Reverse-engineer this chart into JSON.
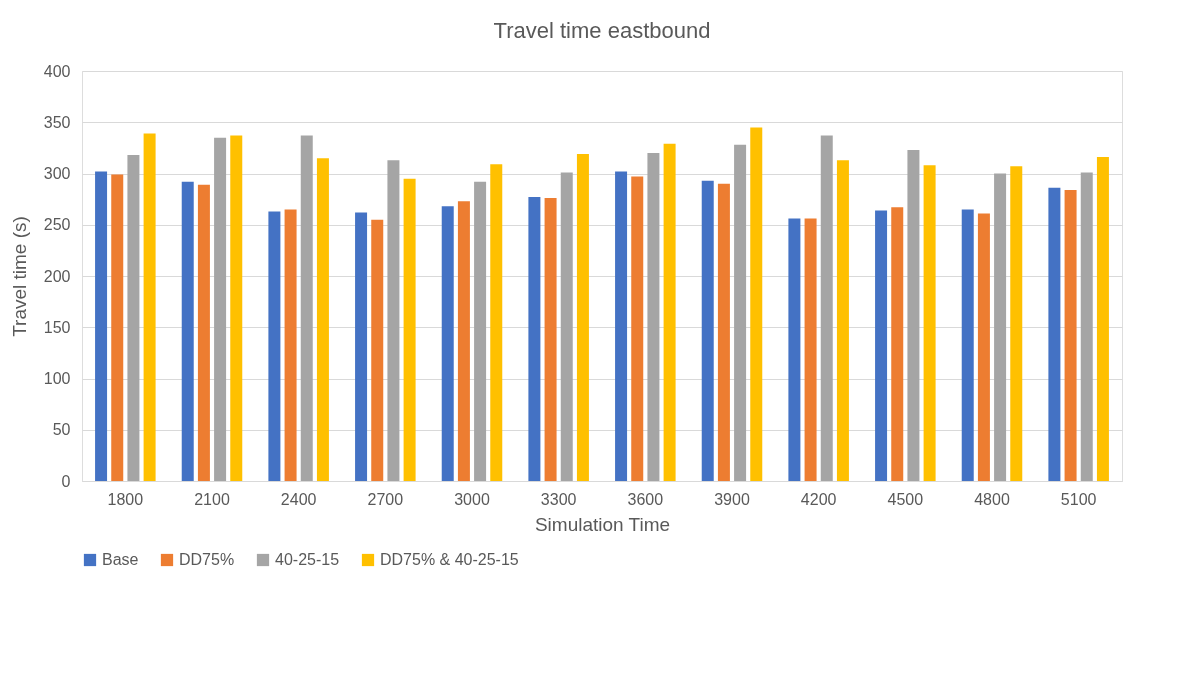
{
  "chart_data": {
    "type": "bar",
    "title": "Travel time eastbound",
    "xlabel": "Simulation Time",
    "ylabel": "Travel time (s)",
    "categories": [
      "1800",
      "2100",
      "2400",
      "2700",
      "3000",
      "3300",
      "3600",
      "3900",
      "4200",
      "4500",
      "4800",
      "5100"
    ],
    "series": [
      {
        "name": "Base",
        "color": "#4472c4",
        "values": [
          302,
          292,
          263,
          262,
          268,
          277,
          302,
          293,
          256,
          264,
          265,
          286
        ]
      },
      {
        "name": "DD75%",
        "color": "#ed7d31",
        "values": [
          299,
          289,
          265,
          255,
          273,
          276,
          297,
          290,
          256,
          267,
          261,
          284
        ]
      },
      {
        "name": "40-25-15",
        "color": "#a5a5a5",
        "values": [
          318,
          335,
          337,
          313,
          292,
          301,
          320,
          328,
          337,
          323,
          300,
          301
        ]
      },
      {
        "name": "DD75% & 40-25-15",
        "color": "#ffc000",
        "values": [
          339,
          337,
          315,
          295,
          309,
          319,
          329,
          345,
          313,
          308,
          307,
          316
        ]
      }
    ],
    "ylim": [
      0,
      400
    ],
    "yticks": [
      0,
      50,
      100,
      150,
      200,
      250,
      300,
      350,
      400
    ],
    "grid": "y",
    "legend": "bottom"
  }
}
